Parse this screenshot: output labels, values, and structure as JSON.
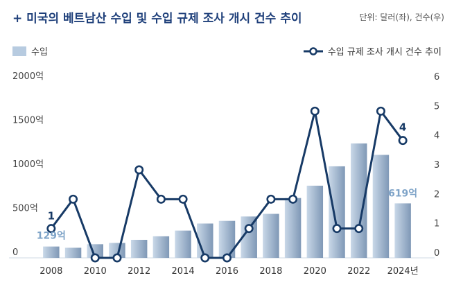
{
  "header": {
    "title": "+ 미국의 베트남산 수입 및 수입 규제 조사 개시 건수 추이",
    "unit_note": "단위: 달러(좌), 건수(우)"
  },
  "legend": {
    "bar_label": "수입",
    "line_label": "수입 규제 조사 개시 건수 추이"
  },
  "colors": {
    "bar_light": "#c9d8e8",
    "bar_dark": "#7f98b6",
    "line": "#173a66",
    "marker_fill": "#ffffff",
    "annotation_bar": "#7fa4c8",
    "annotation_line": "#173a66",
    "title": "#1e3f7a"
  },
  "chart_data": {
    "type": "bar+line",
    "x": [
      2008,
      2009,
      2010,
      2011,
      2012,
      2013,
      2014,
      2015,
      2016,
      2017,
      2018,
      2019,
      2020,
      2021,
      2022,
      2023,
      2024
    ],
    "x_tick_labels": [
      "2008",
      "",
      "2010",
      "",
      "2012",
      "",
      "2014",
      "",
      "2016",
      "",
      "2018",
      "",
      "2020",
      "",
      "2022",
      "",
      "2024년"
    ],
    "series": [
      {
        "name": "수입",
        "type": "bar",
        "axis": "left",
        "values": [
          129,
          115,
          155,
          170,
          205,
          245,
          310,
          390,
          420,
          470,
          500,
          680,
          820,
          1040,
          1300,
          1170,
          619
        ]
      },
      {
        "name": "수입 규제 조사 개시 건수 추이",
        "type": "line",
        "axis": "right",
        "values": [
          1,
          2,
          0,
          0,
          3,
          2,
          2,
          0,
          0,
          1,
          2,
          2,
          5,
          1,
          1,
          5,
          4
        ]
      }
    ],
    "y_left": {
      "min": 0,
      "max": 2000,
      "tick_labels": [
        "0",
        "500억",
        "1000억",
        "1500억",
        "2000억"
      ]
    },
    "y_right": {
      "min": 0,
      "max": 6,
      "tick_labels": [
        "0",
        "1",
        "2",
        "3",
        "4",
        "5",
        "6"
      ]
    },
    "annotations": {
      "first_bar": "129억",
      "last_bar": "619억",
      "first_line": "1",
      "last_line": "4"
    }
  }
}
